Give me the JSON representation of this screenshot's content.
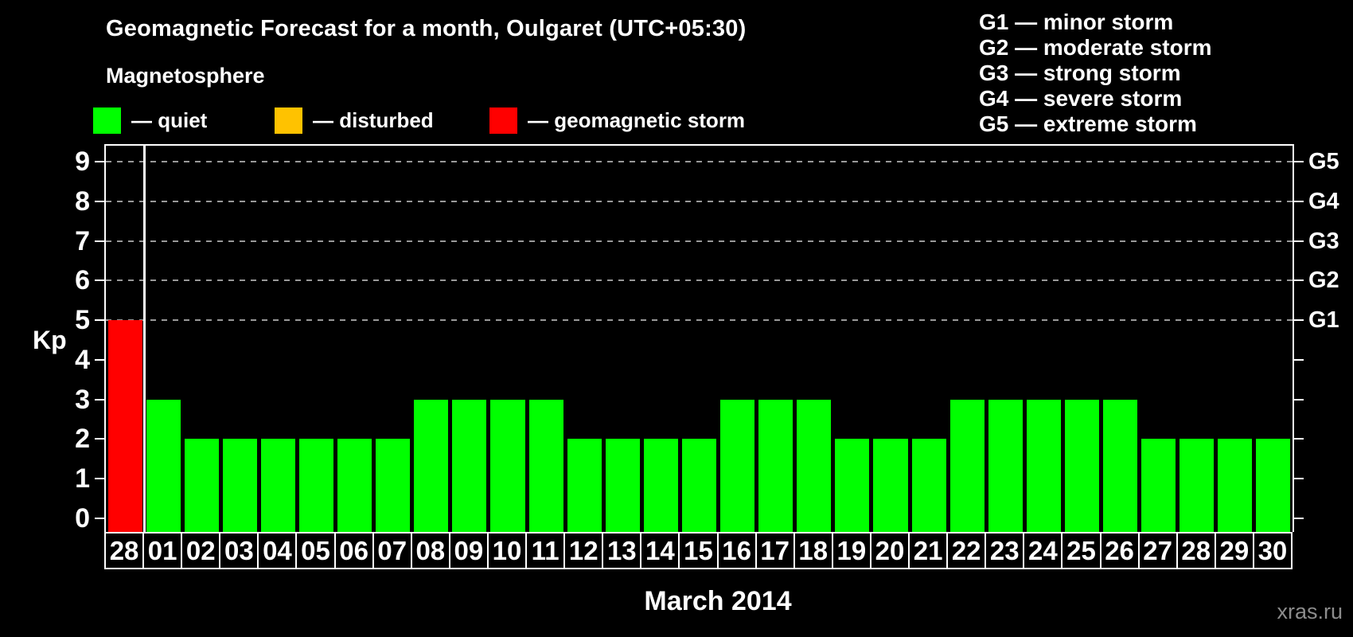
{
  "header": {
    "title": "Geomagnetic Forecast for a month, Oulgaret (UTC+05:30)",
    "subtitle": "Magnetosphere"
  },
  "legend": {
    "items": [
      {
        "key": "quiet",
        "label": "— quiet",
        "color": "#00ff00"
      },
      {
        "key": "disturbed",
        "label": "— disturbed",
        "color": "#ffc200"
      },
      {
        "key": "storm",
        "label": "— geomagnetic storm",
        "color": "#ff0000"
      }
    ]
  },
  "storm_legend": {
    "items": [
      {
        "label": "G1 — minor storm"
      },
      {
        "label": "G2 — moderate storm"
      },
      {
        "label": "G3 — strong storm"
      },
      {
        "label": "G4 — severe storm"
      },
      {
        "label": "G5 — extreme storm"
      }
    ]
  },
  "chart_data": {
    "type": "bar",
    "title": "Geomagnetic Forecast for a month, Oulgaret (UTC+05:30)",
    "ylabel": "Kp",
    "xlabel": "March 2014",
    "categories": [
      "28",
      "01",
      "02",
      "03",
      "04",
      "05",
      "06",
      "07",
      "08",
      "09",
      "10",
      "11",
      "12",
      "13",
      "14",
      "15",
      "16",
      "17",
      "18",
      "19",
      "20",
      "21",
      "22",
      "23",
      "24",
      "25",
      "26",
      "27",
      "28",
      "29",
      "30"
    ],
    "values": [
      5,
      3,
      2,
      2,
      2,
      2,
      2,
      2,
      3,
      3,
      3,
      3,
      2,
      2,
      2,
      2,
      3,
      3,
      3,
      2,
      2,
      2,
      3,
      3,
      3,
      3,
      3,
      2,
      2,
      2,
      2
    ],
    "bar_colors": [
      "#ff0000",
      "#00ff00",
      "#00ff00",
      "#00ff00",
      "#00ff00",
      "#00ff00",
      "#00ff00",
      "#00ff00",
      "#00ff00",
      "#00ff00",
      "#00ff00",
      "#00ff00",
      "#00ff00",
      "#00ff00",
      "#00ff00",
      "#00ff00",
      "#00ff00",
      "#00ff00",
      "#00ff00",
      "#00ff00",
      "#00ff00",
      "#00ff00",
      "#00ff00",
      "#00ff00",
      "#00ff00",
      "#00ff00",
      "#00ff00",
      "#00ff00",
      "#00ff00",
      "#00ff00",
      "#00ff00"
    ],
    "ylim": [
      0,
      9
    ],
    "y_ticks": [
      "0",
      "1",
      "2",
      "3",
      "4",
      "5",
      "6",
      "7",
      "8",
      "9"
    ],
    "gridlines_at_kp": [
      5,
      6,
      7,
      8,
      9
    ],
    "right_axis": [
      {
        "kp": 5,
        "label": "G1"
      },
      {
        "kp": 6,
        "label": "G2"
      },
      {
        "kp": 7,
        "label": "G3"
      },
      {
        "kp": 8,
        "label": "G4"
      },
      {
        "kp": 9,
        "label": "G5"
      }
    ],
    "month_separator_after_index": 0,
    "grid": "dashed-horizontal",
    "legend_position": "top-left"
  },
  "footer": {
    "watermark": "xras.ru"
  },
  "colors": {
    "background": "#000000",
    "text": "#ffffff",
    "gridline": "#999999",
    "quiet": "#00ff00",
    "disturbed": "#ffc200",
    "storm": "#ff0000",
    "watermark": "#8c8c8c"
  }
}
